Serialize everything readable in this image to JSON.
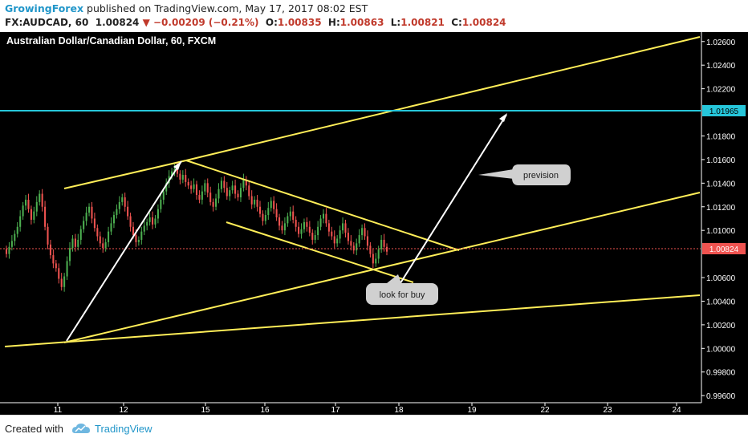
{
  "header": {
    "author": "GrowingForex",
    "published_text": "published on TradingView.com, May 17, 2017 08:02 EST",
    "symbol": "FX:AUDCAD, 60",
    "last": "1.00824",
    "change": "−0.00209 (−0.21%)",
    "open_label": "O:",
    "open": "1.00835",
    "high_label": "H:",
    "high": "1.00863",
    "low_label": "L:",
    "low": "1.00821",
    "close_label": "C:",
    "close": "1.00824"
  },
  "footer": {
    "created_with": "Created with",
    "brand": "TradingView"
  },
  "colors": {
    "up": "#4caf50",
    "down": "#ef5350",
    "trendline": "#ffee58",
    "hline": "#26c6da",
    "arrow": "#ffffff",
    "background": "#000000",
    "price_label": "#ef5350"
  },
  "chart_data": {
    "type": "candlestick",
    "title": "Australian Dollar/Canadian Dollar, 60, FXCM",
    "x_ticks": [
      "11",
      "12",
      "15",
      "16",
      "17",
      "18",
      "19",
      "22",
      "23",
      "24"
    ],
    "y_ticks": [
      "1.02600",
      "1.02400",
      "1.02200",
      "1.01800",
      "1.01600",
      "1.01400",
      "1.01200",
      "1.01000",
      "1.00600",
      "1.00400",
      "1.00200",
      "1.00000",
      "0.99800",
      "0.99600"
    ],
    "y_range": [
      0.9954,
      1.0268
    ],
    "last_price": "1.00824",
    "horizontal_line": "1.01965",
    "annotations": [
      "prevision",
      "look for buy"
    ],
    "series": [
      {
        "name": "AUDCAD",
        "close": [
          1.008,
          1.0086,
          1.0091,
          1.0097,
          1.0103,
          1.0112,
          1.0121,
          1.0126,
          1.0118,
          1.0109,
          1.0116,
          1.0124,
          1.0131,
          1.012,
          1.0103,
          1.0088,
          1.0079,
          1.0072,
          1.0068,
          1.0059,
          1.0052,
          1.0061,
          1.0074,
          1.0085,
          1.0093,
          1.0086,
          1.0092,
          1.0101,
          1.0108,
          1.0115,
          1.012,
          1.011,
          1.0102,
          1.0095,
          1.0089,
          1.0085,
          1.009,
          1.0099,
          1.0106,
          1.0113,
          1.0118,
          1.0124,
          1.0128,
          1.012,
          1.0112,
          1.0103,
          1.0096,
          1.009,
          1.0092,
          1.0099,
          1.0104,
          1.0107,
          1.0111,
          1.0105,
          1.011,
          1.0118,
          1.0126,
          1.0133,
          1.014,
          1.0146,
          1.015,
          1.0152,
          1.0148,
          1.0143,
          1.0147,
          1.0141,
          1.0138,
          1.0135,
          1.0139,
          1.013,
          1.0126,
          1.0133,
          1.014,
          1.0132,
          1.0124,
          1.012,
          1.0127,
          1.0135,
          1.0142,
          1.0136,
          1.0129,
          1.0134,
          1.0138,
          1.0131,
          1.0128,
          1.0136,
          1.0143,
          1.0138,
          1.0129,
          1.0122,
          1.0126,
          1.012,
          1.0114,
          1.0108,
          1.0113,
          1.0119,
          1.0125,
          1.0118,
          1.0111,
          1.0104,
          1.01,
          1.0106,
          1.0112,
          1.0116,
          1.0109,
          1.0103,
          1.0097,
          1.0101,
          1.0107,
          1.0103,
          1.0098,
          1.0092,
          1.0096,
          1.0103,
          1.011,
          1.0114,
          1.0106,
          1.0099,
          1.0095,
          1.0089,
          1.0093,
          1.01,
          1.0106,
          1.0098,
          1.0091,
          1.0087,
          1.0083,
          1.0089,
          1.0096,
          1.0102,
          1.0095,
          1.0087,
          1.008,
          1.0072,
          1.0076,
          1.0084,
          1.0092,
          1.0086,
          1.0082
        ]
      }
    ]
  }
}
